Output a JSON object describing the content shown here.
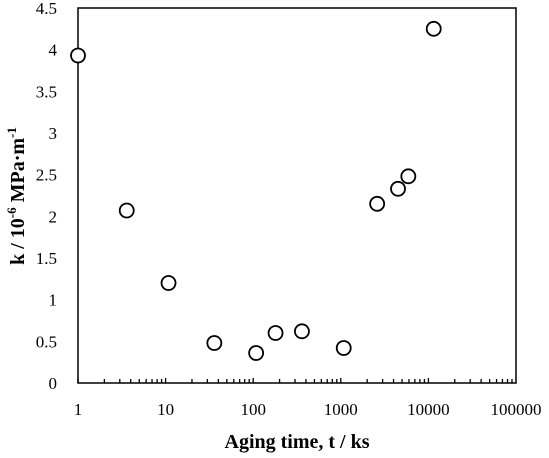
{
  "chart_data": {
    "type": "scatter",
    "x_scale": "log",
    "xlim": [
      1,
      100000
    ],
    "ylim": [
      0,
      4.5
    ],
    "grid": false,
    "legend": "none",
    "xlabel": "Aging time,  t / ks",
    "ylabel_main": "k / 10",
    "ylabel_exp1": "-6",
    "ylabel_mid": " MPa·m",
    "ylabel_exp2": "-1",
    "x_tick_labels": [
      "1",
      "10",
      "100",
      "1000",
      "10000",
      "100000"
    ],
    "x_tick_values": [
      1,
      10,
      100,
      1000,
      10000,
      100000
    ],
    "y_tick_labels": [
      "0",
      "0.5",
      "1",
      "1.5",
      "2",
      "2.5",
      "3",
      "3.5",
      "4",
      "4.5"
    ],
    "y_tick_values": [
      0,
      0.5,
      1,
      1.5,
      2,
      2.5,
      3,
      3.5,
      4,
      4.5
    ],
    "points": [
      {
        "x": 1,
        "y": 3.93
      },
      {
        "x": 3.6,
        "y": 2.07
      },
      {
        "x": 10.8,
        "y": 1.2
      },
      {
        "x": 36,
        "y": 0.48
      },
      {
        "x": 108,
        "y": 0.36
      },
      {
        "x": 180,
        "y": 0.6
      },
      {
        "x": 360,
        "y": 0.62
      },
      {
        "x": 1080,
        "y": 0.42
      },
      {
        "x": 2600,
        "y": 2.15
      },
      {
        "x": 4500,
        "y": 2.33
      },
      {
        "x": 5900,
        "y": 2.48
      },
      {
        "x": 11500,
        "y": 4.25
      }
    ],
    "marker": "open-circle",
    "marker_color": "#000000"
  }
}
